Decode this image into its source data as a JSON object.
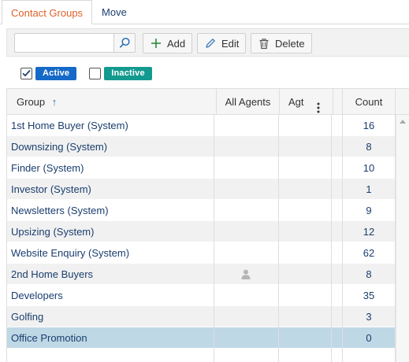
{
  "tabs": [
    {
      "label": "Contact Groups",
      "active": true
    },
    {
      "label": "Move",
      "active": false
    }
  ],
  "toolbar": {
    "search_value": "",
    "add_label": "Add",
    "edit_label": "Edit",
    "delete_label": "Delete"
  },
  "filters": {
    "active_label": "Active",
    "active_checked": true,
    "active_color": "#1569c7",
    "inactive_label": "Inactive",
    "inactive_checked": false,
    "inactive_color": "#139a8f"
  },
  "grid": {
    "columns": {
      "group": "Group",
      "group_sort_glyph": "↑",
      "all_agents": "All Agents",
      "agt": "Agt",
      "count": "Count"
    },
    "rows": [
      {
        "group": "1st Home Buyer (System)",
        "count": "16"
      },
      {
        "group": "Downsizing (System)",
        "count": "8"
      },
      {
        "group": "Finder (System)",
        "count": "10"
      },
      {
        "group": "Investor (System)",
        "count": "1"
      },
      {
        "group": "Newsletters (System)",
        "count": "9"
      },
      {
        "group": "Upsizing (System)",
        "count": "12"
      },
      {
        "group": "Website Enquiry (System)",
        "count": "62"
      },
      {
        "group": "2nd Home Buyers",
        "count": "8",
        "all_agents_icon": "person-icon"
      },
      {
        "group": "Developers",
        "count": "35"
      },
      {
        "group": "Golfing",
        "count": "3"
      },
      {
        "group": "Office Promotion",
        "count": "0",
        "selected": true
      }
    ]
  }
}
